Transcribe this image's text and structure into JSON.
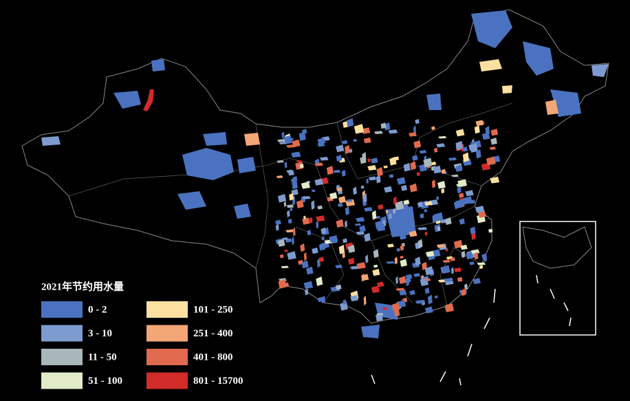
{
  "legend": {
    "title": "2021年节约用水量",
    "items": [
      {
        "label": "0 - 2",
        "color": "#4a72c0"
      },
      {
        "label": "3 - 10",
        "color": "#7d9bcf"
      },
      {
        "label": "11 - 50",
        "color": "#a9b7bd"
      },
      {
        "label": "51 - 100",
        "color": "#e2ebc8"
      },
      {
        "label": "101 - 250",
        "color": "#fbe0a0"
      },
      {
        "label": "251 - 400",
        "color": "#f3a676"
      },
      {
        "label": "401 - 800",
        "color": "#e06a4e"
      },
      {
        "label": "801 - 15700",
        "color": "#d12c2a"
      }
    ]
  }
}
